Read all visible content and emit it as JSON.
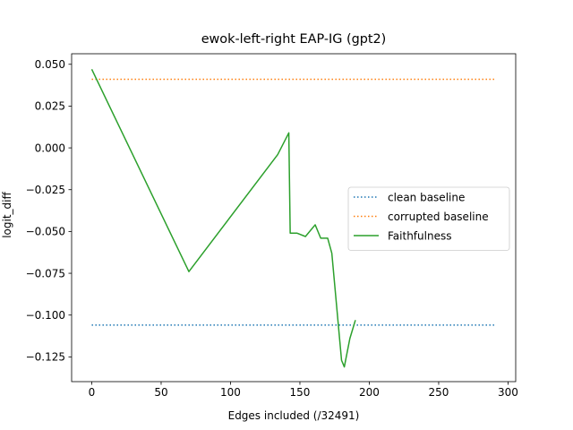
{
  "chart_data": {
    "type": "line",
    "title": "ewok-left-right EAP-IG (gpt2)",
    "xlabel": "Edges included (/32491)",
    "ylabel": "logit_diff",
    "xlim": [
      -14.5,
      305.5
    ],
    "ylim": [
      -0.1398,
      0.0563
    ],
    "xticks": [
      0,
      50,
      100,
      150,
      200,
      250,
      300
    ],
    "xtick_labels": [
      "0",
      "50",
      "100",
      "150",
      "200",
      "250",
      "300"
    ],
    "yticks": [
      -0.125,
      -0.1,
      -0.075,
      -0.05,
      -0.025,
      0.0,
      0.025,
      0.05
    ],
    "ytick_labels": [
      "−0.125",
      "−0.100",
      "−0.075",
      "−0.050",
      "−0.025",
      "0.000",
      "0.025",
      "0.050"
    ],
    "grid": false,
    "legend_position": "center-right",
    "series": [
      {
        "name": "clean baseline",
        "style": "dotted",
        "color": "#1f77b4",
        "x": [
          0,
          291
        ],
        "y": [
          -0.106,
          -0.106
        ]
      },
      {
        "name": "corrupted baseline",
        "style": "dotted",
        "color": "#ff7f0e",
        "x": [
          0,
          291
        ],
        "y": [
          0.041,
          0.041
        ]
      },
      {
        "name": "Faithfulness",
        "style": "solid",
        "color": "#2ca02c",
        "x": [
          0,
          70,
          134,
          142,
          143,
          148,
          154,
          161,
          165,
          170,
          173,
          180,
          182,
          186,
          190
        ],
        "y": [
          0.047,
          -0.074,
          -0.004,
          0.009,
          -0.051,
          -0.051,
          -0.053,
          -0.046,
          -0.054,
          -0.054,
          -0.063,
          -0.127,
          -0.131,
          -0.114,
          -0.103
        ]
      }
    ]
  }
}
